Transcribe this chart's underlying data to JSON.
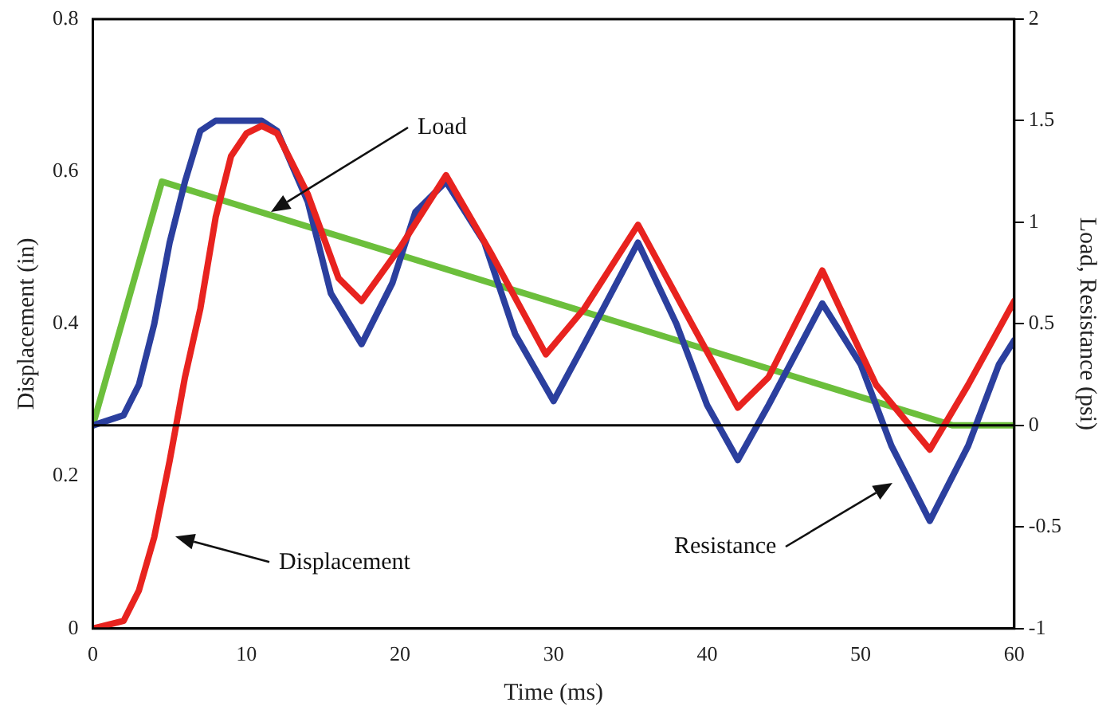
{
  "chart_data": {
    "type": "line",
    "xlabel": "Time (ms)",
    "ylabel": "Displacement (in)",
    "y2label": "Load, Resistance (psi)",
    "xlim": [
      0,
      60
    ],
    "xticks": [
      0,
      10,
      20,
      30,
      40,
      50,
      60
    ],
    "ylim": [
      0,
      0.8
    ],
    "yticks": [
      0,
      0.2,
      0.4,
      0.6,
      0.8
    ],
    "y2lim": [
      -1,
      2
    ],
    "y2ticks": [
      -1,
      -0.5,
      0,
      0.5,
      1,
      1.5,
      2
    ],
    "grid": false,
    "legend": false,
    "marker": "none",
    "line_style": "solid",
    "series": [
      {
        "color": "#e8231f",
        "x": [
          0,
          2,
          3,
          4,
          5,
          6,
          7,
          8,
          9,
          10,
          11,
          12,
          14,
          16,
          17.5,
          20,
          23,
          26,
          29.5,
          32,
          35.5,
          39,
          42,
          44,
          47.5,
          51,
          54.5,
          57,
          60
        ],
        "values": [
          0,
          0.01,
          0.05,
          0.12,
          0.22,
          0.33,
          0.42,
          0.54,
          0.62,
          0.65,
          0.66,
          0.65,
          0.57,
          0.46,
          0.43,
          0.5,
          0.595,
          0.49,
          0.36,
          0.42,
          0.53,
          0.4,
          0.29,
          0.33,
          0.47,
          0.32,
          0.235,
          0.32,
          0.43
        ]
      },
      {
        "color": "#2b3f9e",
        "axis": "y2",
        "x": [
          0,
          2,
          3,
          4,
          5,
          6,
          7,
          8,
          11,
          12,
          14,
          15.5,
          17.5,
          19.5,
          21,
          23,
          25.5,
          27.5,
          30,
          32,
          35.5,
          38,
          40,
          42,
          44,
          47.5,
          50,
          52,
          54.5,
          57,
          59,
          60
        ],
        "values": [
          0,
          0.05,
          0.2,
          0.5,
          0.9,
          1.2,
          1.45,
          1.5,
          1.5,
          1.45,
          1.1,
          0.65,
          0.4,
          0.7,
          1.05,
          1.2,
          0.9,
          0.45,
          0.12,
          0.4,
          0.9,
          0.5,
          0.1,
          -0.17,
          0.1,
          0.6,
          0.3,
          -0.1,
          -0.47,
          -0.1,
          0.3,
          0.42
        ]
      },
      {
        "color": "#6cbf3c",
        "axis": "y2",
        "x": [
          0,
          4.5,
          56,
          60
        ],
        "values": [
          0,
          1.2,
          0,
          0
        ]
      }
    ],
    "ref_lines": [
      {
        "axis": "y2",
        "value": 0,
        "color": "#000000"
      }
    ],
    "annotations": [
      "Load",
      "Displacement",
      "Resistance"
    ]
  }
}
